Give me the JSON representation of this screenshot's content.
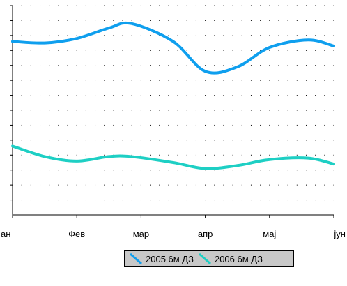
{
  "chart_data": {
    "type": "line",
    "title": "",
    "xlabel": "",
    "ylabel": "",
    "categories": [
      "ан",
      "Фев",
      "мар",
      "апр",
      "мај",
      "јун"
    ],
    "x": [
      0,
      0.5,
      1,
      1.5,
      1.85,
      2.5,
      3,
      3.5,
      4,
      4.6,
      5
    ],
    "ylim": [
      0,
      14
    ],
    "grid": "dotted",
    "legend": "bottom",
    "series": [
      {
        "name": "2005 6м ДЗ",
        "color": "#0f9fee",
        "values": [
          11.6,
          11.5,
          11.8,
          12.5,
          12.8,
          11.6,
          9.6,
          9.9,
          11.2,
          11.7,
          11.3
        ]
      },
      {
        "name": "2006 6м ДЗ",
        "color": "#1ecfc4",
        "values": [
          4.6,
          3.9,
          3.6,
          3.9,
          3.9,
          3.5,
          3.1,
          3.3,
          3.7,
          3.8,
          3.4
        ]
      }
    ]
  }
}
